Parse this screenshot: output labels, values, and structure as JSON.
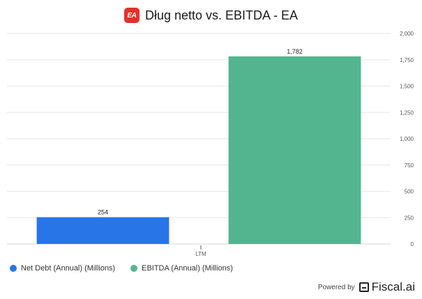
{
  "header": {
    "logo_text": "EA",
    "title": "Dług netto vs. EBITDA - EA"
  },
  "footer": {
    "powered_label": "Powered by",
    "brand": "Fiscal.ai"
  },
  "colors": {
    "net_debt": "#2775e6",
    "ebitda": "#52b590",
    "grid": "#e6e6e6"
  },
  "chart_data": {
    "type": "bar",
    "title": "Dług netto vs. EBITDA - EA",
    "categories": [
      "LTM"
    ],
    "series": [
      {
        "name": "Net Debt (Annual) (Millions)",
        "values": [
          254
        ]
      },
      {
        "name": "EBITDA (Annual) (Millions)",
        "values": [
          1782
        ]
      }
    ],
    "ylim": [
      0,
      2000
    ],
    "yticks": [
      0,
      250,
      500,
      750,
      1000,
      1250,
      1500,
      1750,
      2000
    ],
    "ytick_labels": [
      "0",
      "250",
      "500",
      "750",
      "1,000",
      "1,250",
      "1,500",
      "1,750",
      "2,000"
    ],
    "data_labels": [
      "254",
      "1,782"
    ],
    "xlabel": "",
    "ylabel": "",
    "grid": true,
    "legend_position": "bottom-left"
  }
}
